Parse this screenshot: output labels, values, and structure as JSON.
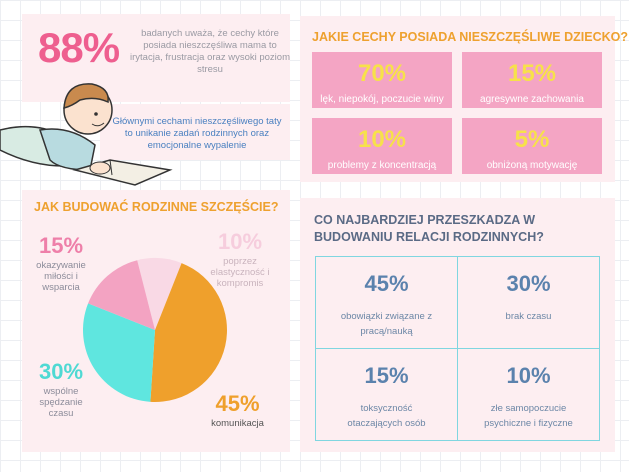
{
  "header_stat": {
    "number": "88%",
    "text": "badanych uważa, że cechy które posiada nieszczęśliwa mama to irytacja, frustracja oraz wysoki poziom stresu"
  },
  "father_note": "Głównymi cechami nieszczęśliwego taty to unikanie zadań rodzinnych oraz emocjonalne wypalenie",
  "child_traits": {
    "title": "JAKIE CECHY POSIADA NIESZCZĘŚLIWE DZIECKO?",
    "items": [
      {
        "number": "70%",
        "text": "lęk, niepokój, poczucie winy"
      },
      {
        "number": "15%",
        "text": "agresywne zachowania"
      },
      {
        "number": "10%",
        "text": "problemy z koncentracją"
      },
      {
        "number": "5%",
        "text": "obniżoną motywację"
      }
    ]
  },
  "chart_data": {
    "type": "pie",
    "title": "JAK BUDOWAĆ RODZINNE SZCZĘŚCIE?",
    "categories": [
      "poprzez elastyczność i kompromis",
      "komunikacja",
      "wspólne spędzanie czasu",
      "okazywanie miłości i wsparcia"
    ],
    "values": [
      10,
      45,
      30,
      15
    ],
    "value_labels": [
      "10%",
      "45%",
      "30%",
      "15%"
    ],
    "colors": [
      "#f9d9e5",
      "#efa02c",
      "#5fe6df",
      "#f3a3c2"
    ]
  },
  "obstacles": {
    "title": "CO NAJBARDZIEJ PRZESZKADZA W BUDOWANIU RELACJI RODZINNYCH?",
    "items": [
      {
        "number": "45%",
        "text": "obowiązki związane z pracą/nauką"
      },
      {
        "number": "30%",
        "text": "brak czasu"
      },
      {
        "number": "15%",
        "text": "toksyczność otaczających osób"
      },
      {
        "number": "10%",
        "text": "złe samopoczucie psychiczne i fizyczne"
      }
    ]
  }
}
